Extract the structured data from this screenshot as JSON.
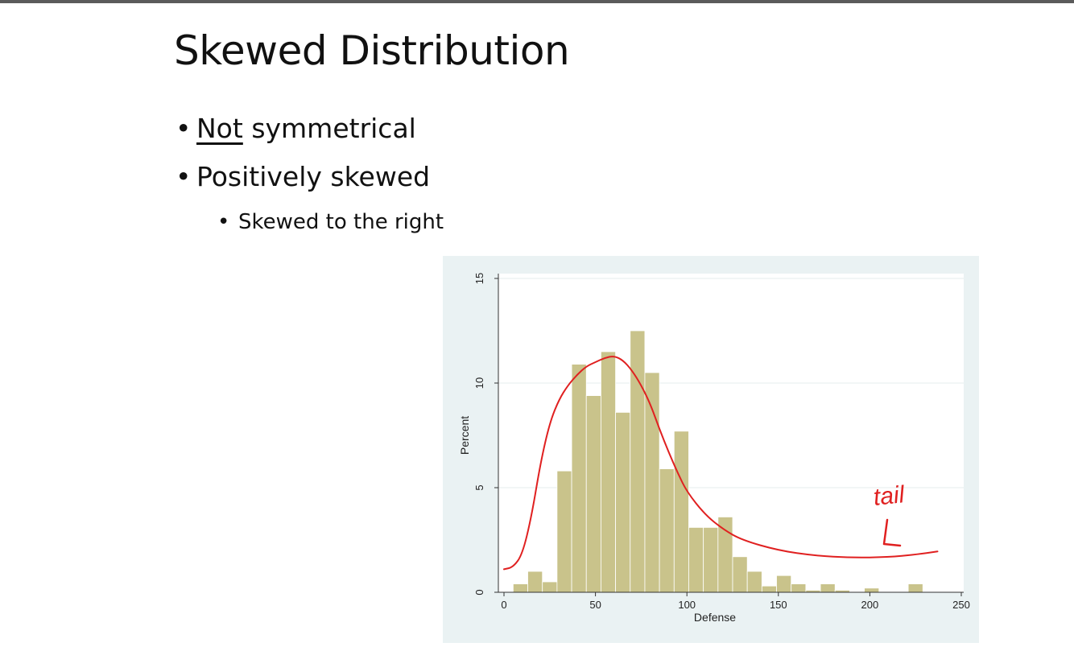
{
  "slide": {
    "title": "Skewed Distribution",
    "bullet1_underlined": "Not",
    "bullet1_rest": " symmetrical",
    "bullet2": "Positively skewed",
    "bullet2_sub": "Skewed to the right"
  },
  "chart_data": {
    "type": "bar",
    "title": "",
    "xlabel": "Defense",
    "ylabel": "Percent",
    "xlim": [
      0,
      250
    ],
    "ylim": [
      0,
      15
    ],
    "xticks": [
      "0",
      "50",
      "100",
      "150",
      "200",
      "250"
    ],
    "yticks": [
      "0",
      "5",
      "10",
      "15"
    ],
    "grid": true,
    "bin_width": 8,
    "bins": [
      {
        "start": 5,
        "value": 0.4
      },
      {
        "start": 13,
        "value": 1.0
      },
      {
        "start": 21,
        "value": 0.5
      },
      {
        "start": 29,
        "value": 5.8
      },
      {
        "start": 37,
        "value": 10.9
      },
      {
        "start": 45,
        "value": 9.4
      },
      {
        "start": 53,
        "value": 11.5
      },
      {
        "start": 61,
        "value": 8.6
      },
      {
        "start": 69,
        "value": 12.5
      },
      {
        "start": 77,
        "value": 10.5
      },
      {
        "start": 85,
        "value": 5.9
      },
      {
        "start": 93,
        "value": 7.7
      },
      {
        "start": 101,
        "value": 3.1
      },
      {
        "start": 109,
        "value": 3.1
      },
      {
        "start": 117,
        "value": 3.6
      },
      {
        "start": 125,
        "value": 1.7
      },
      {
        "start": 133,
        "value": 1.0
      },
      {
        "start": 141,
        "value": 0.3
      },
      {
        "start": 149,
        "value": 0.8
      },
      {
        "start": 157,
        "value": 0.4
      },
      {
        "start": 165,
        "value": 0.1
      },
      {
        "start": 173,
        "value": 0.4
      },
      {
        "start": 181,
        "value": 0.1
      },
      {
        "start": 197,
        "value": 0.2
      },
      {
        "start": 221,
        "value": 0.4
      }
    ],
    "bar_color": "#c9c38b",
    "annotation": {
      "text": "tail",
      "color": "#e02020",
      "curve": [
        [
          0,
          1.1
        ],
        [
          5,
          1.2
        ],
        [
          10,
          1.8
        ],
        [
          15,
          3.6
        ],
        [
          20,
          6.2
        ],
        [
          25,
          8.1
        ],
        [
          30,
          9.2
        ],
        [
          35,
          9.9
        ],
        [
          40,
          10.4
        ],
        [
          45,
          10.8
        ],
        [
          50,
          11.0
        ],
        [
          55,
          11.2
        ],
        [
          60,
          11.3
        ],
        [
          65,
          11.1
        ],
        [
          70,
          10.6
        ],
        [
          75,
          9.9
        ],
        [
          80,
          9.0
        ],
        [
          85,
          7.8
        ],
        [
          90,
          6.7
        ],
        [
          95,
          5.7
        ],
        [
          100,
          4.8
        ],
        [
          110,
          3.7
        ],
        [
          120,
          3.0
        ],
        [
          130,
          2.5
        ],
        [
          150,
          2.0
        ],
        [
          170,
          1.75
        ],
        [
          190,
          1.65
        ],
        [
          210,
          1.68
        ],
        [
          225,
          1.8
        ],
        [
          237,
          1.95
        ]
      ]
    }
  }
}
